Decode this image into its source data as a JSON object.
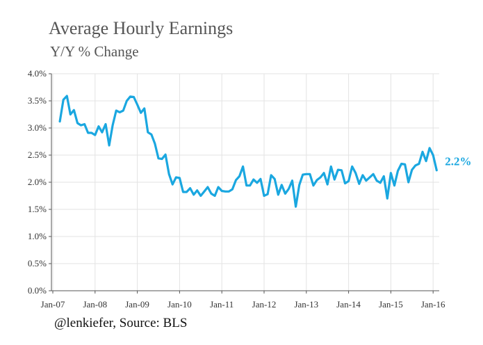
{
  "chart_data": {
    "type": "line",
    "title": "Average Hourly Earnings",
    "subtitle": "Y/Y % Change",
    "source": "@lenkiefer, Source: BLS",
    "end_label": "2.2%",
    "line_color": "#1aa7e0",
    "grid": true,
    "x_start_month": 0,
    "ylim": [
      0,
      4
    ],
    "y_ticks": [
      {
        "value": 0,
        "label": "0.0%"
      },
      {
        "value": 0.5,
        "label": "0.5%"
      },
      {
        "value": 1,
        "label": "1.0%"
      },
      {
        "value": 1.5,
        "label": "1.5%"
      },
      {
        "value": 2,
        "label": "2.0%"
      },
      {
        "value": 2.5,
        "label": "2.5%"
      },
      {
        "value": 3,
        "label": "3.0%"
      },
      {
        "value": 3.5,
        "label": "3.5%"
      },
      {
        "value": 4,
        "label": "4.0%"
      }
    ],
    "x_ticks": [
      "Jan-07",
      "Jan-08",
      "Jan-09",
      "Jan-10",
      "Jan-11",
      "Jan-12",
      "Jan-13",
      "Jan-14",
      "Jan-15",
      "Jan-16"
    ],
    "series": [
      {
        "start": "Mar-07",
        "values": [
          3.12,
          3.52,
          3.59,
          3.25,
          3.33,
          3.09,
          3.05,
          3.07,
          2.91,
          2.91,
          2.87,
          3.03,
          2.92,
          3.07,
          2.68,
          3.05,
          3.32,
          3.29,
          3.32,
          3.5,
          3.58,
          3.57,
          3.43,
          3.28,
          3.36,
          2.92,
          2.88,
          2.71,
          2.44,
          2.43,
          2.51,
          2.15,
          1.96,
          2.09,
          2.08,
          1.82,
          1.82,
          1.89,
          1.77,
          1.85,
          1.75,
          1.83,
          1.91,
          1.79,
          1.75,
          1.91,
          1.84,
          1.83,
          1.83,
          1.87,
          2.04,
          2.11,
          2.29,
          1.94,
          1.94,
          2.05,
          1.99,
          2.06,
          1.75,
          1.78,
          2.13,
          2.06,
          1.77,
          1.95,
          1.79,
          1.88,
          2.03,
          1.55,
          1.95,
          2.14,
          2.15,
          2.15,
          1.94,
          2.04,
          2.09,
          2.17,
          1.96,
          2.29,
          2.05,
          2.23,
          2.22,
          1.98,
          2.02,
          2.29,
          2.17,
          1.97,
          2.13,
          2.03,
          2.09,
          2.15,
          2.03,
          1.99,
          2.11,
          1.7,
          2.17,
          1.94,
          2.21,
          2.34,
          2.33,
          2.0,
          2.23,
          2.31,
          2.34,
          2.56,
          2.39,
          2.63,
          2.5,
          2.22
        ]
      }
    ]
  }
}
